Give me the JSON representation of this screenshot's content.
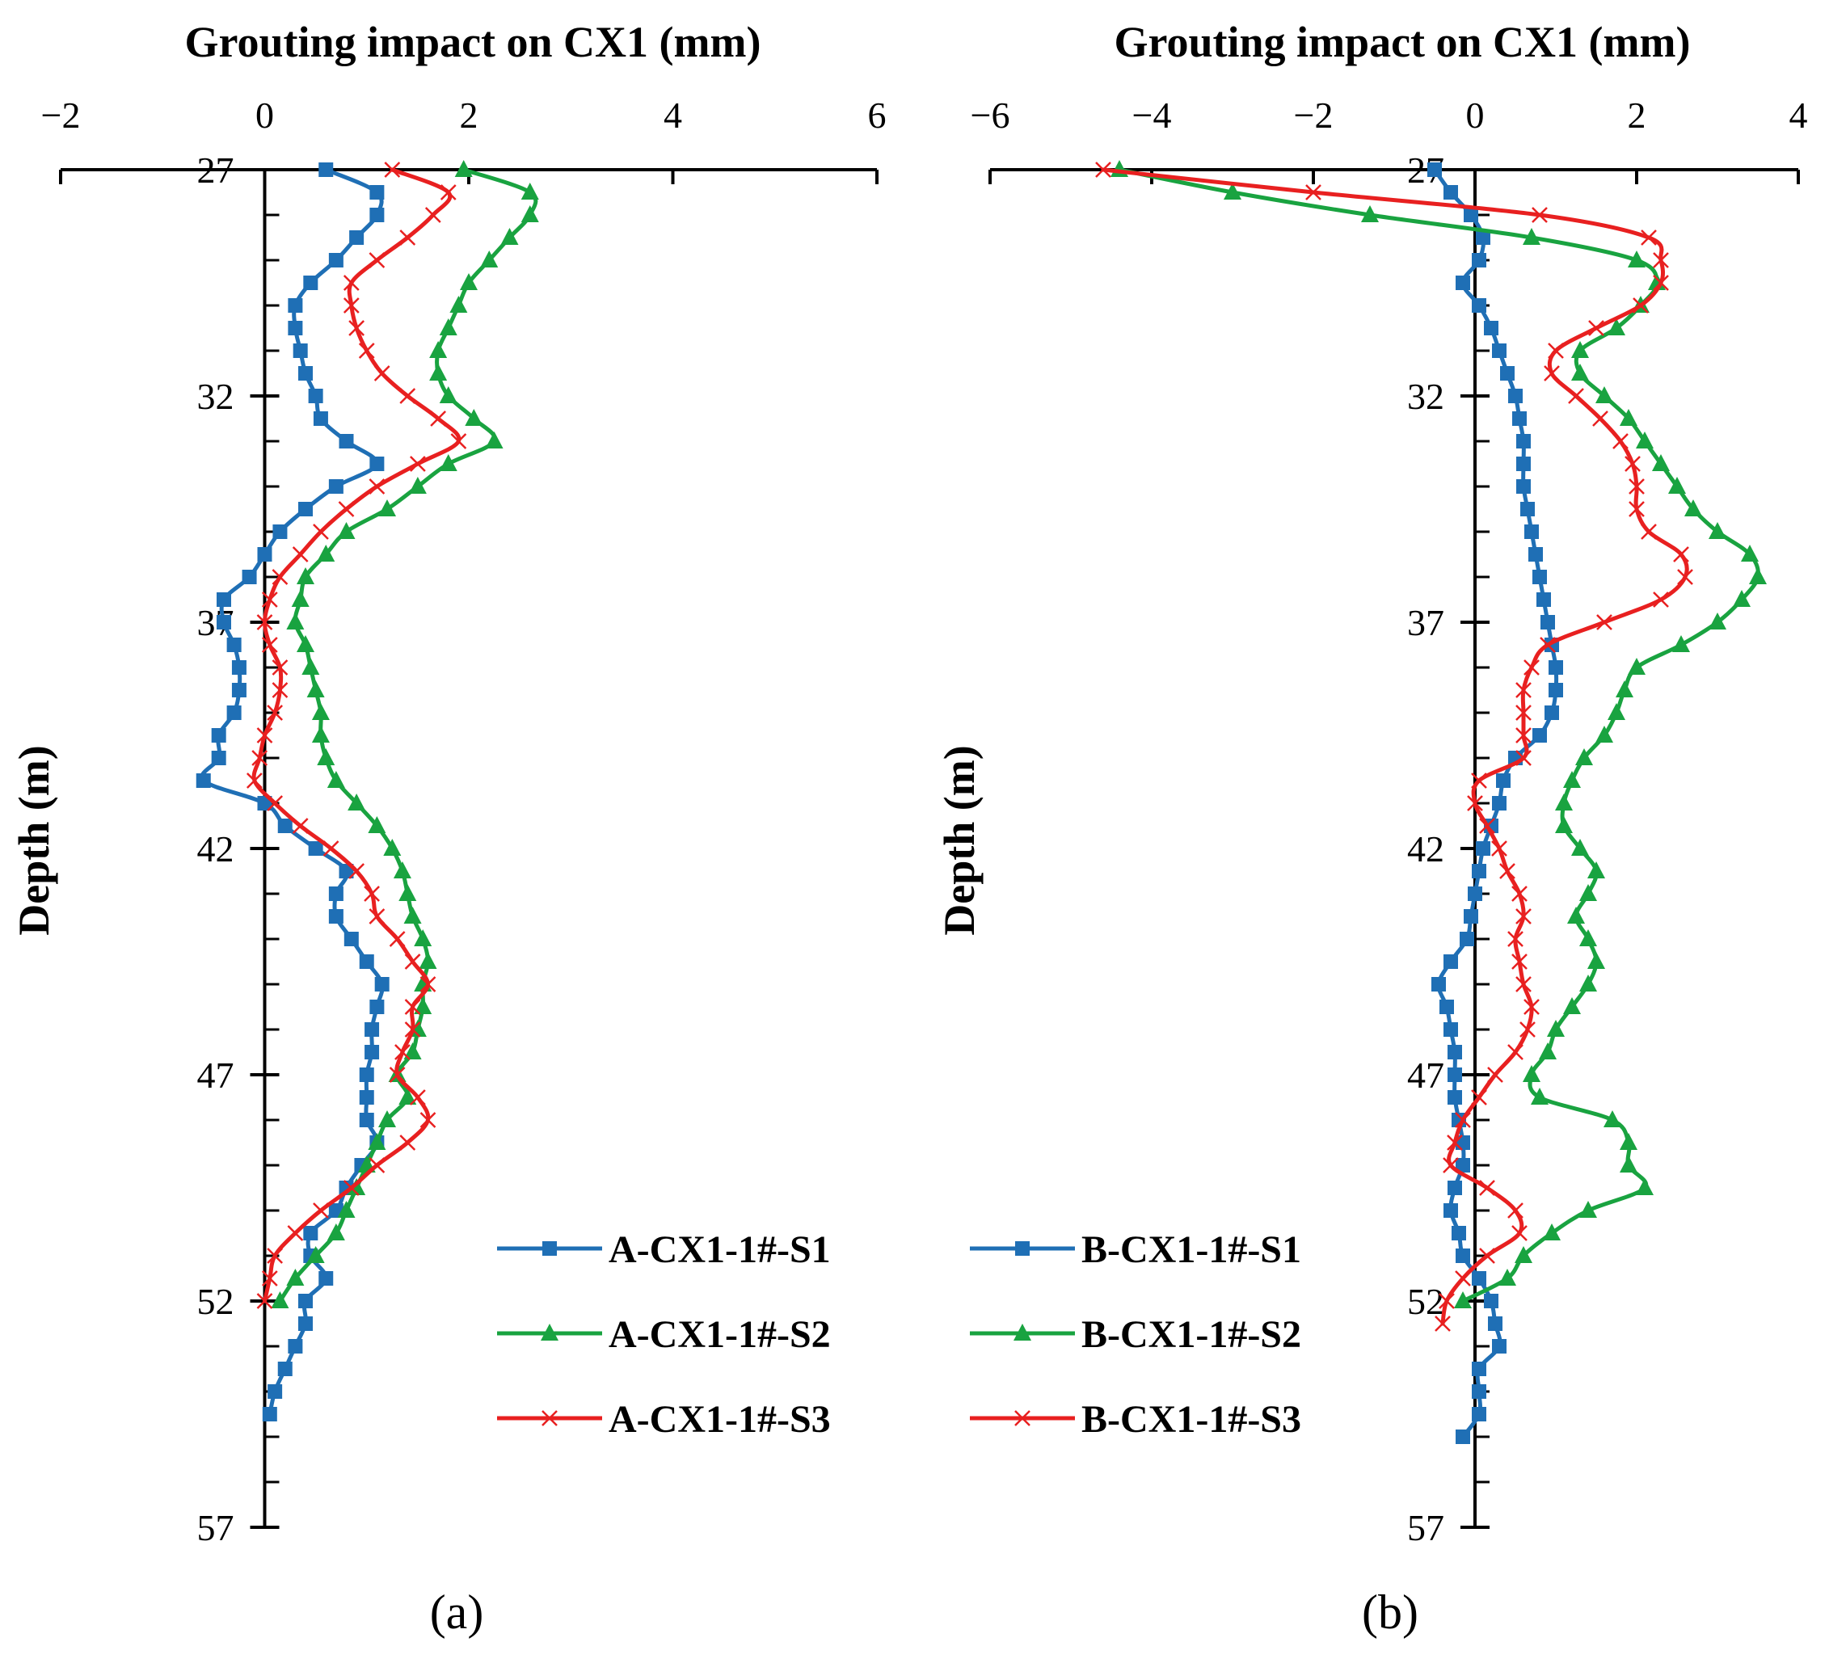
{
  "chart_data": [
    {
      "panel": "(a)",
      "type": "line",
      "xlabel": "Grouting impact on CX1 (mm)",
      "ylabel": "Depth  (m)",
      "xlim": [
        -2,
        6
      ],
      "ylim": [
        27,
        57
      ],
      "xticks": [
        -2,
        0,
        2,
        4,
        6
      ],
      "yticks": [
        27,
        32,
        37,
        42,
        47,
        52,
        57
      ],
      "x_tick_labels": [
        "−2",
        "0",
        "2",
        "4",
        "6"
      ],
      "y_tick_labels": [
        "27",
        "32",
        "37",
        "42",
        "47",
        "52",
        "57"
      ],
      "series": [
        {
          "name": "A-CX1-1#-S1",
          "color": "#1f6fb5",
          "marker": "square",
          "x": [
            0.6,
            1.1,
            1.1,
            0.9,
            0.7,
            0.45,
            0.3,
            0.3,
            0.35,
            0.4,
            0.5,
            0.55,
            0.8,
            1.1,
            0.7,
            0.4,
            0.15,
            0.0,
            -0.15,
            -0.4,
            -0.4,
            -0.3,
            -0.25,
            -0.25,
            -0.3,
            -0.45,
            -0.45,
            -0.6,
            0.0,
            0.2,
            0.5,
            0.8,
            0.7,
            0.7,
            0.85,
            1.0,
            1.15,
            1.1,
            1.05,
            1.05,
            1.0,
            1.0,
            1.0,
            1.1,
            0.95,
            0.8,
            0.7,
            0.45,
            0.45,
            0.6,
            0.4,
            0.4,
            0.3,
            0.2,
            0.1,
            0.05
          ],
          "y": [
            27.0,
            27.5,
            28.0,
            28.5,
            29.0,
            29.5,
            30.0,
            30.5,
            31.0,
            31.5,
            32.0,
            32.5,
            33.0,
            33.5,
            34.0,
            34.5,
            35.0,
            35.5,
            36.0,
            36.5,
            37.0,
            37.5,
            38.0,
            38.5,
            39.0,
            39.5,
            40.0,
            40.5,
            41.0,
            41.5,
            42.0,
            42.5,
            43.0,
            43.5,
            44.0,
            44.5,
            45.0,
            45.5,
            46.0,
            46.5,
            47.0,
            47.5,
            48.0,
            48.5,
            49.0,
            49.5,
            50.0,
            50.5,
            51.0,
            51.5,
            52.0,
            52.5,
            53.0,
            53.5,
            54.0,
            54.5
          ]
        },
        {
          "name": "A-CX1-1#-S2",
          "color": "#19a340",
          "marker": "triangle",
          "x": [
            1.95,
            2.6,
            2.6,
            2.4,
            2.2,
            2.0,
            1.9,
            1.8,
            1.7,
            1.7,
            1.8,
            2.05,
            2.25,
            1.8,
            1.5,
            1.2,
            0.8,
            0.6,
            0.4,
            0.35,
            0.3,
            0.4,
            0.45,
            0.5,
            0.55,
            0.55,
            0.6,
            0.7,
            0.9,
            1.1,
            1.25,
            1.35,
            1.4,
            1.45,
            1.55,
            1.6,
            1.55,
            1.55,
            1.5,
            1.45,
            1.3,
            1.4,
            1.2,
            1.1,
            1.0,
            0.9,
            0.8,
            0.7,
            0.5,
            0.3,
            0.15
          ],
          "y": [
            27.0,
            27.5,
            28.0,
            28.5,
            29.0,
            29.5,
            30.0,
            30.5,
            31.0,
            31.5,
            32.0,
            32.5,
            33.0,
            33.5,
            34.0,
            34.5,
            35.0,
            35.5,
            36.0,
            36.5,
            37.0,
            37.5,
            38.0,
            38.5,
            39.0,
            39.5,
            40.0,
            40.5,
            41.0,
            41.5,
            42.0,
            42.5,
            43.0,
            43.5,
            44.0,
            44.5,
            45.0,
            45.5,
            46.0,
            46.5,
            47.0,
            47.5,
            48.0,
            48.5,
            49.0,
            49.5,
            50.0,
            50.5,
            51.0,
            51.5,
            52.0
          ]
        },
        {
          "name": "A-CX1-1#-S3",
          "color": "#e82020",
          "marker": "x",
          "x": [
            1.25,
            1.8,
            1.65,
            1.4,
            1.1,
            0.85,
            0.85,
            0.9,
            1.0,
            1.15,
            1.4,
            1.7,
            1.9,
            1.5,
            1.1,
            0.8,
            0.55,
            0.35,
            0.15,
            0.05,
            0.0,
            0.05,
            0.15,
            0.15,
            0.1,
            0.0,
            -0.05,
            -0.1,
            0.1,
            0.35,
            0.65,
            0.9,
            1.05,
            1.1,
            1.3,
            1.45,
            1.6,
            1.45,
            1.45,
            1.35,
            1.3,
            1.5,
            1.6,
            1.4,
            1.1,
            0.85,
            0.55,
            0.3,
            0.1,
            0.05,
            0.0
          ],
          "y": [
            27.0,
            27.5,
            28.0,
            28.5,
            29.0,
            29.5,
            30.0,
            30.5,
            31.0,
            31.5,
            32.0,
            32.5,
            33.0,
            33.5,
            34.0,
            34.5,
            35.0,
            35.5,
            36.0,
            36.5,
            37.0,
            37.5,
            38.0,
            38.5,
            39.0,
            39.5,
            40.0,
            40.5,
            41.0,
            41.5,
            42.0,
            42.5,
            43.0,
            43.5,
            44.0,
            44.5,
            45.0,
            45.5,
            46.0,
            46.5,
            47.0,
            47.5,
            48.0,
            48.5,
            49.0,
            49.5,
            50.0,
            50.5,
            51.0,
            51.5,
            52.0
          ]
        }
      ],
      "legend": [
        "A-CX1-1#-S1",
        "A-CX1-1#-S2",
        "A-CX1-1#-S3"
      ]
    },
    {
      "panel": "(b)",
      "type": "line",
      "xlabel": "Grouting impact on CX1 (mm)",
      "ylabel": "Depth  (m)",
      "xlim": [
        -6,
        4
      ],
      "ylim": [
        27,
        57
      ],
      "xticks": [
        -6,
        -4,
        -2,
        0,
        2,
        4
      ],
      "yticks": [
        27,
        32,
        37,
        42,
        47,
        52,
        57
      ],
      "x_tick_labels": [
        "−6",
        "−4",
        "−2",
        "0",
        "2",
        "4"
      ],
      "y_tick_labels": [
        "27",
        "32",
        "37",
        "42",
        "47",
        "52",
        "57"
      ],
      "series": [
        {
          "name": "B-CX1-1#-S1",
          "color": "#1f6fb5",
          "marker": "square",
          "x": [
            -0.5,
            -0.3,
            -0.05,
            0.1,
            0.05,
            -0.15,
            0.05,
            0.2,
            0.3,
            0.4,
            0.5,
            0.55,
            0.6,
            0.6,
            0.6,
            0.65,
            0.7,
            0.75,
            0.8,
            0.85,
            0.9,
            0.95,
            1.0,
            1.0,
            0.95,
            0.8,
            0.5,
            0.35,
            0.3,
            0.2,
            0.1,
            0.05,
            0.0,
            -0.05,
            -0.1,
            -0.3,
            -0.45,
            -0.35,
            -0.3,
            -0.25,
            -0.25,
            -0.25,
            -0.2,
            -0.15,
            -0.15,
            -0.25,
            -0.3,
            -0.2,
            -0.15,
            0.05,
            0.2,
            0.25,
            0.3,
            0.05,
            0.05,
            0.05,
            -0.15
          ],
          "y": [
            27.0,
            27.5,
            28.0,
            28.5,
            29.0,
            29.5,
            30.0,
            30.5,
            31.0,
            31.5,
            32.0,
            32.5,
            33.0,
            33.5,
            34.0,
            34.5,
            35.0,
            35.5,
            36.0,
            36.5,
            37.0,
            37.5,
            38.0,
            38.5,
            39.0,
            39.5,
            40.0,
            40.5,
            41.0,
            41.5,
            42.0,
            42.5,
            43.0,
            43.5,
            44.0,
            44.5,
            45.0,
            45.5,
            46.0,
            46.5,
            47.0,
            47.5,
            48.0,
            48.5,
            49.0,
            49.5,
            50.0,
            50.5,
            51.0,
            51.5,
            52.0,
            52.5,
            53.0,
            53.5,
            54.0,
            54.5,
            55.0
          ]
        },
        {
          "name": "B-CX1-1#-S2",
          "color": "#19a340",
          "marker": "triangle",
          "x": [
            -4.4,
            -3.0,
            -1.3,
            0.7,
            2.0,
            2.25,
            2.05,
            1.75,
            1.3,
            1.3,
            1.6,
            1.9,
            2.1,
            2.3,
            2.5,
            2.7,
            3.0,
            3.4,
            3.5,
            3.3,
            3.0,
            2.55,
            2.0,
            1.85,
            1.75,
            1.6,
            1.35,
            1.2,
            1.1,
            1.1,
            1.3,
            1.5,
            1.4,
            1.25,
            1.4,
            1.5,
            1.4,
            1.2,
            1.0,
            0.9,
            0.7,
            0.8,
            1.7,
            1.9,
            1.9,
            2.1,
            1.4,
            0.95,
            0.6,
            0.4,
            -0.15
          ],
          "y": [
            27.0,
            27.5,
            28.0,
            28.5,
            29.0,
            29.5,
            30.0,
            30.5,
            31.0,
            31.5,
            32.0,
            32.5,
            33.0,
            33.5,
            34.0,
            34.5,
            35.0,
            35.5,
            36.0,
            36.5,
            37.0,
            37.5,
            38.0,
            38.5,
            39.0,
            39.5,
            40.0,
            40.5,
            41.0,
            41.5,
            42.0,
            42.5,
            43.0,
            43.5,
            44.0,
            44.5,
            45.0,
            45.5,
            46.0,
            46.5,
            47.0,
            47.5,
            48.0,
            48.5,
            49.0,
            49.5,
            50.0,
            50.5,
            51.0,
            51.5,
            52.0
          ]
        },
        {
          "name": "B-CX1-1#-S3",
          "color": "#e82020",
          "marker": "x",
          "x": [
            -4.6,
            -2.0,
            0.8,
            2.15,
            2.3,
            2.3,
            2.05,
            1.5,
            1.0,
            0.95,
            1.25,
            1.55,
            1.8,
            1.95,
            2.0,
            2.0,
            2.15,
            2.55,
            2.6,
            2.3,
            1.6,
            0.9,
            0.7,
            0.6,
            0.6,
            0.6,
            0.6,
            0.05,
            0.0,
            0.15,
            0.3,
            0.4,
            0.55,
            0.6,
            0.5,
            0.55,
            0.6,
            0.7,
            0.65,
            0.5,
            0.25,
            0.05,
            -0.15,
            -0.25,
            -0.3,
            0.15,
            0.5,
            0.55,
            0.15,
            -0.15,
            -0.35,
            -0.4
          ],
          "y": [
            27.0,
            27.5,
            28.0,
            28.5,
            29.0,
            29.5,
            30.0,
            30.5,
            31.0,
            31.5,
            32.0,
            32.5,
            33.0,
            33.5,
            34.0,
            34.5,
            35.0,
            35.5,
            36.0,
            36.5,
            37.0,
            37.5,
            38.0,
            38.5,
            39.0,
            39.5,
            40.0,
            40.5,
            41.0,
            41.5,
            42.0,
            42.5,
            43.0,
            43.5,
            44.0,
            44.5,
            45.0,
            45.5,
            46.0,
            46.5,
            47.0,
            47.5,
            48.0,
            48.5,
            49.0,
            49.5,
            50.0,
            50.5,
            51.0,
            51.5,
            52.0,
            52.5
          ]
        }
      ],
      "legend": [
        "B-CX1-1#-S1",
        "B-CX1-1#-S2",
        "B-CX1-1#-S3"
      ]
    }
  ]
}
